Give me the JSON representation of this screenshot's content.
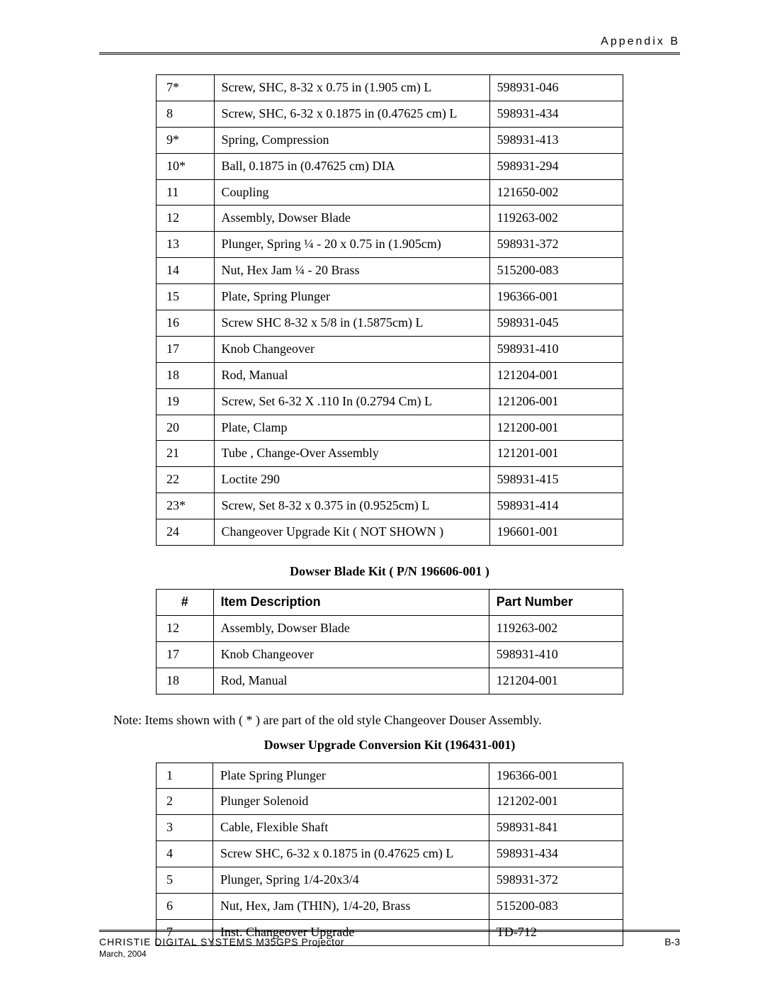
{
  "header": {
    "appendix": "Appendix B"
  },
  "table1": {
    "rows": [
      {
        "num": "7*",
        "desc": "Screw, SHC, 8-32 x 0.75 in (1.905 cm) L",
        "pn": "598931-046"
      },
      {
        "num": "8",
        "desc": "Screw, SHC, 6-32 x 0.1875 in (0.47625 cm) L",
        "pn": "598931-434"
      },
      {
        "num": "9*",
        "desc": "Spring, Compression",
        "pn": "598931-413"
      },
      {
        "num": "10*",
        "desc": "Ball, 0.1875 in (0.47625 cm) DIA",
        "pn": "598931-294"
      },
      {
        "num": "11",
        "desc": "Coupling",
        "pn": "121650-002"
      },
      {
        "num": "12",
        "desc": "Assembly, Dowser Blade",
        "pn": "119263-002"
      },
      {
        "num": "13",
        "desc": "Plunger, Spring ¼ - 20 x 0.75 in (1.905cm)",
        "pn": "598931-372"
      },
      {
        "num": "14",
        "desc": "Nut, Hex Jam ¼ - 20 Brass",
        "pn": "515200-083"
      },
      {
        "num": "15",
        "desc": "Plate, Spring Plunger",
        "pn": "196366-001"
      },
      {
        "num": "16",
        "desc": "Screw SHC 8-32 x 5/8 in (1.5875cm) L",
        "pn": "598931-045"
      },
      {
        "num": "17",
        "desc": "Knob Changeover",
        "pn": "598931-410"
      },
      {
        "num": "18",
        "desc": "Rod, Manual",
        "pn": "121204-001"
      },
      {
        "num": "19",
        "desc": "Screw, Set 6-32 X .110 In (0.2794 Cm) L",
        "pn": "121206-001"
      },
      {
        "num": "20",
        "desc": "Plate, Clamp",
        "pn": "121200-001"
      },
      {
        "num": "21",
        "desc": "Tube , Change-Over Assembly",
        "pn": "121201-001"
      },
      {
        "num": "22",
        "desc": "Loctite 290",
        "pn": "598931-415"
      },
      {
        "num": "23*",
        "desc": "Screw, Set 8-32 x 0.375 in (0.9525cm) L",
        "pn": "598931-414"
      },
      {
        "num": "24",
        "desc": "Changeover Upgrade Kit   ( NOT  SHOWN )",
        "pn": "196601-001"
      }
    ]
  },
  "kit1": {
    "heading": "Dowser Blade Kit ( P/N 196606-001 )",
    "columns": {
      "num": "#",
      "desc": "Item Description",
      "pn": "Part Number"
    },
    "rows": [
      {
        "num": "12",
        "desc": "Assembly, Dowser Blade",
        "pn": "119263-002"
      },
      {
        "num": "17",
        "desc": "Knob Changeover",
        "pn": "598931-410"
      },
      {
        "num": "18",
        "desc": "Rod, Manual",
        "pn": "121204-001"
      }
    ]
  },
  "note": "Note: Items shown with ( * ) are part of the old style Changeover Douser Assembly.",
  "kit2": {
    "heading": "Dowser Upgrade Conversion Kit (196431-001)",
    "rows": [
      {
        "num": "1",
        "desc": "Plate Spring Plunger",
        "pn": "196366-001"
      },
      {
        "num": "2",
        "desc": "Plunger Solenoid",
        "pn": "121202-001"
      },
      {
        "num": "3",
        "desc": "Cable, Flexible Shaft",
        "pn": "598931-841"
      },
      {
        "num": "4",
        "desc": "Screw  SHC, 6-32 x 0.1875 in (0.47625 cm) L",
        "pn": "598931-434"
      },
      {
        "num": "5",
        "desc": "Plunger, Spring 1/4-20x3/4",
        "pn": "598931-372"
      },
      {
        "num": "6",
        "desc": "Nut, Hex, Jam (THIN), 1/4-20, Brass",
        "pn": "515200-083"
      },
      {
        "num": "7",
        "desc": "Inst. Changeover Upgrade",
        "pn": "TD-712"
      }
    ]
  },
  "footer": {
    "brand": "CHRISTIE DIGITAL SYSTEMS",
    "product": " M35GPS Projector",
    "page": "B-3",
    "date": "March, 2004"
  }
}
